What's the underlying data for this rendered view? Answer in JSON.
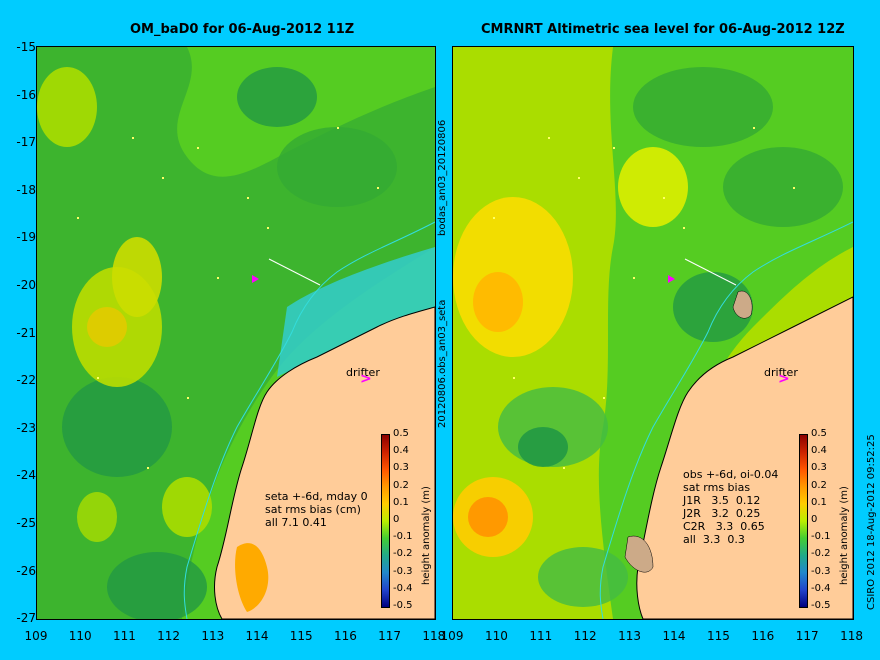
{
  "left_panel": {
    "title": "OM_baD0 for 06-Aug-2012 11Z",
    "stats": "seta +-6d, mday 0\nsat rms bias (cm)\nall 7.1 0.41",
    "drifter_label": "drifter",
    "drifter_arrow": ">"
  },
  "right_panel": {
    "title": "CMRNRT Altimetric sea level  for 06-Aug-2012 12Z",
    "stats": "obs +-6d, oi-0.04\nsat rms bias\nJ1R   3.5  0.12\nJ2R   3.2  0.25\nC2R   3.3  0.65\nall  3.3  0.3",
    "drifter_label": "drifter",
    "drifter_arrow": ">"
  },
  "middle_caption_top": "bodas_an03_20120806",
  "middle_caption_bottom": "20120806.obs_an03_seta",
  "right_caption": "CSIRO 2012  18-Aug-2012 09:52:25",
  "y_axis_labels": [
    "-15",
    "-16",
    "-17",
    "-18",
    "-19",
    "-20",
    "-21",
    "-22",
    "-23",
    "-24",
    "-25",
    "-26",
    "-27"
  ],
  "x_axis_labels_left": [
    "109",
    "110",
    "111",
    "112",
    "113",
    "114",
    "115",
    "116",
    "117",
    "118"
  ],
  "x_axis_labels_right": [
    "109",
    "110",
    "111",
    "112",
    "113",
    "114",
    "115",
    "116",
    "117",
    "118"
  ],
  "colorbar": {
    "label": "height anomaly (m)",
    "ticks": [
      "0.5",
      "0.4",
      "0.3",
      "0.2",
      "0.1",
      "0",
      "-0.1",
      "-0.2",
      "-0.3",
      "-0.4",
      "-0.5"
    ]
  },
  "colors": {
    "background": "#00ccff",
    "land": "#ffcc99",
    "ocean_green": "#55cc22",
    "drifter_arrow": "#ff00ff"
  }
}
